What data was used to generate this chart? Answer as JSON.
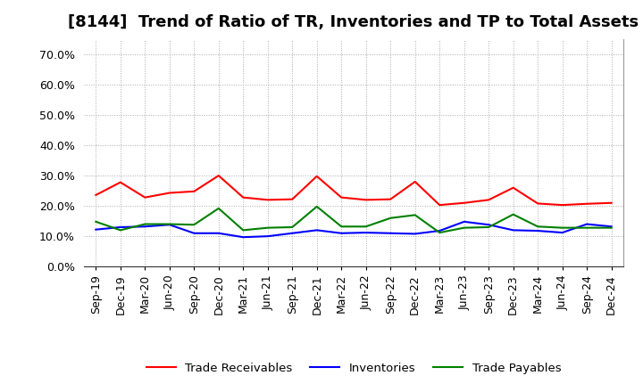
{
  "title": "[8144]  Trend of Ratio of TR, Inventories and TP to Total Assets",
  "x_labels": [
    "Sep-19",
    "Dec-19",
    "Mar-20",
    "Jun-20",
    "Sep-20",
    "Dec-20",
    "Mar-21",
    "Jun-21",
    "Sep-21",
    "Dec-21",
    "Mar-22",
    "Jun-22",
    "Sep-22",
    "Dec-22",
    "Mar-23",
    "Jun-23",
    "Sep-23",
    "Dec-23",
    "Mar-24",
    "Jun-24",
    "Sep-24",
    "Dec-24"
  ],
  "trade_receivables": [
    0.236,
    0.278,
    0.228,
    0.243,
    0.248,
    0.3,
    0.228,
    0.22,
    0.222,
    0.298,
    0.228,
    0.22,
    0.222,
    0.28,
    0.203,
    0.21,
    0.22,
    0.26,
    0.208,
    0.203,
    0.207,
    0.21
  ],
  "inventories": [
    0.122,
    0.13,
    0.132,
    0.138,
    0.11,
    0.11,
    0.097,
    0.1,
    0.11,
    0.12,
    0.11,
    0.112,
    0.11,
    0.108,
    0.118,
    0.148,
    0.138,
    0.12,
    0.118,
    0.112,
    0.14,
    0.132
  ],
  "trade_payables": [
    0.148,
    0.12,
    0.14,
    0.14,
    0.138,
    0.192,
    0.12,
    0.128,
    0.13,
    0.198,
    0.132,
    0.132,
    0.16,
    0.17,
    0.112,
    0.128,
    0.13,
    0.172,
    0.132,
    0.128,
    0.128,
    0.128
  ],
  "ylim": [
    0.0,
    0.75
  ],
  "yticks": [
    0.0,
    0.1,
    0.2,
    0.3,
    0.4,
    0.5,
    0.6,
    0.7
  ],
  "line_colors": {
    "trade_receivables": "#ff0000",
    "inventories": "#0000ff",
    "trade_payables": "#008000"
  },
  "legend_labels": [
    "Trade Receivables",
    "Inventories",
    "Trade Payables"
  ],
  "background_color": "#ffffff",
  "plot_bg_color": "#ffffff",
  "grid_color": "#aaaaaa",
  "title_fontsize": 13,
  "tick_fontsize": 9
}
